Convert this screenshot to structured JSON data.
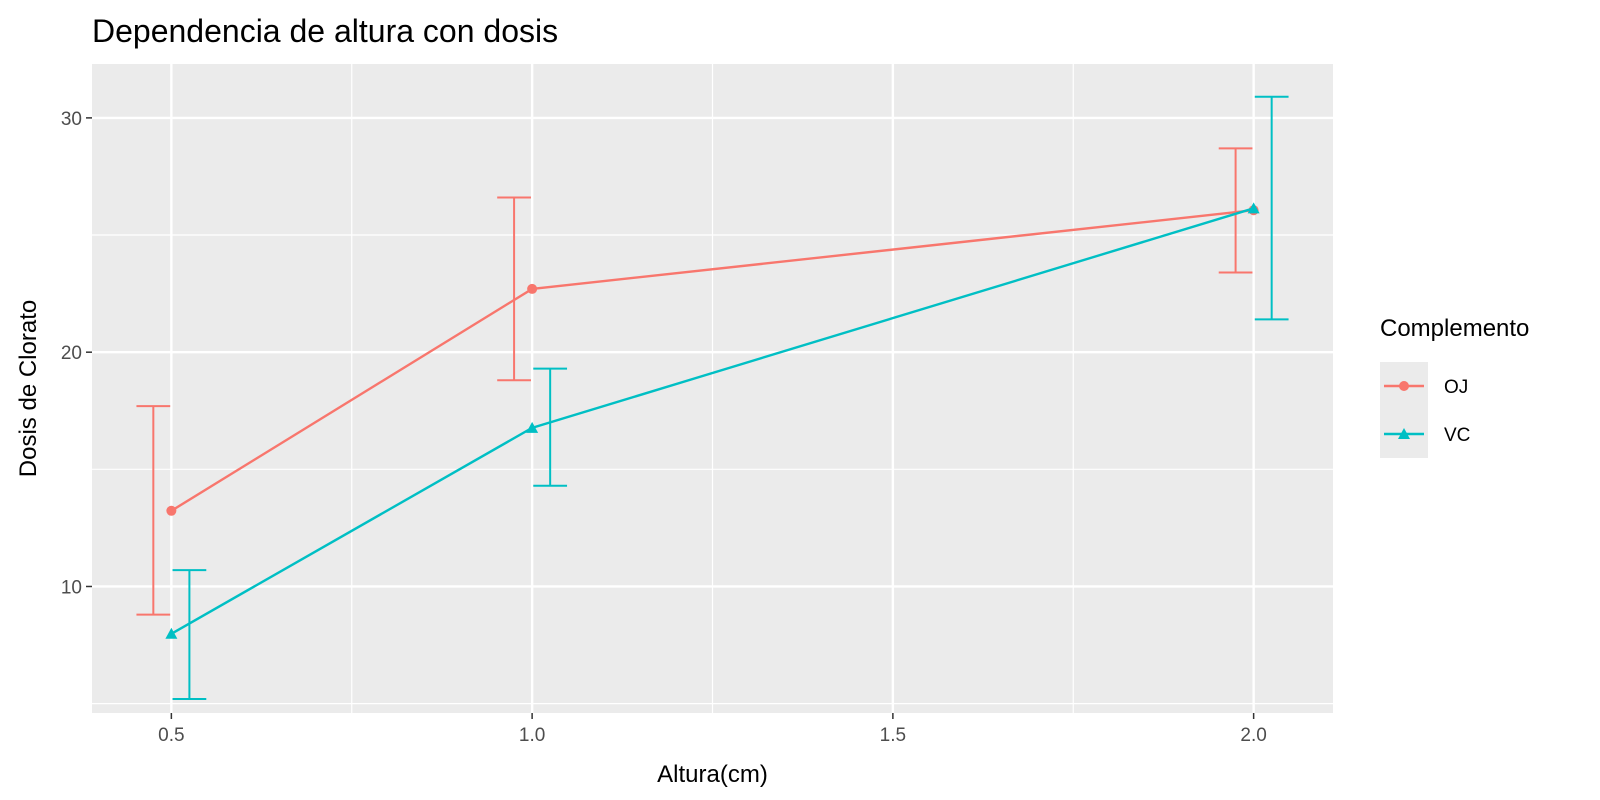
{
  "chart_data": {
    "type": "line",
    "title": "Dependencia de altura con dosis",
    "xlabel": "Altura(cm)",
    "ylabel": "Dosis de Clorato",
    "x": [
      0.5,
      1.0,
      2.0
    ],
    "xlim": [
      0.39,
      2.11
    ],
    "ylim": [
      4.6,
      32.3
    ],
    "x_ticks": [
      {
        "value": 0.5,
        "label": "0.5"
      },
      {
        "value": 1.0,
        "label": "1.0"
      },
      {
        "value": 1.5,
        "label": "1.5"
      },
      {
        "value": 2.0,
        "label": "2.0"
      }
    ],
    "y_ticks": [
      {
        "value": 10,
        "label": "10"
      },
      {
        "value": 20,
        "label": "20"
      },
      {
        "value": 30,
        "label": "30"
      }
    ],
    "grid": true,
    "legend": {
      "title": "Complemento",
      "position": "right"
    },
    "series": [
      {
        "name": "OJ",
        "color": "#F8766D",
        "marker": "circle",
        "values": [
          13.23,
          22.7,
          26.06
        ],
        "error_low": [
          8.8,
          18.8,
          23.4
        ],
        "error_high": [
          17.7,
          26.6,
          28.7
        ]
      },
      {
        "name": "VC",
        "color": "#00BFC4",
        "marker": "triangle",
        "values": [
          7.98,
          16.77,
          26.14
        ],
        "error_low": [
          5.2,
          14.3,
          21.4
        ],
        "error_high": [
          10.7,
          19.3,
          30.9
        ]
      }
    ]
  }
}
